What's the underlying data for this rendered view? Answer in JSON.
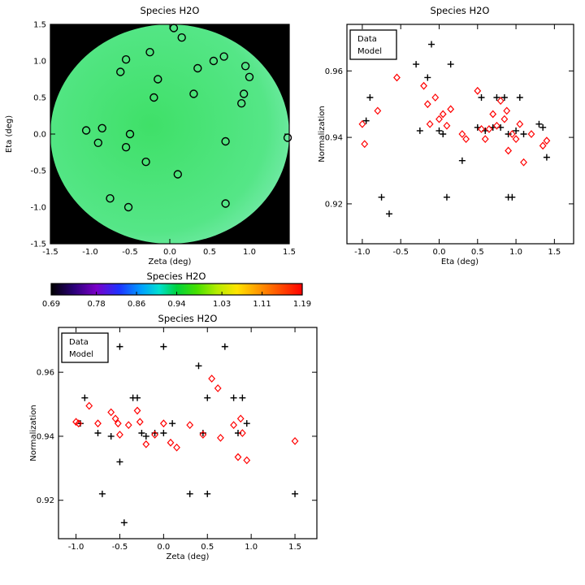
{
  "colors": {
    "page_background": "#ffffff",
    "axis": "#000000",
    "data_marker": "#000000",
    "model_marker": "#ff0000",
    "map_background": "#000000",
    "disk_center": "#3fe068",
    "disk_mid": "#55e687",
    "disk_edge": "#8feec6"
  },
  "chart_data": [
    {
      "id": "map",
      "type": "scatter",
      "title": "Species H2O",
      "xlabel": "Zeta (deg)",
      "ylabel": "Eta (deg)",
      "xlim": [
        -1.5,
        1.5
      ],
      "ylim": [
        -1.5,
        1.5
      ],
      "grid": false,
      "xticks": [
        {
          "v": -1.5,
          "label": "-1.5"
        },
        {
          "v": -1.0,
          "label": "-1.0"
        },
        {
          "v": -0.5,
          "label": "-0.5"
        },
        {
          "v": 0.0,
          "label": "0.0"
        },
        {
          "v": 0.5,
          "label": "0.5"
        },
        {
          "v": 1.0,
          "label": "1.0"
        },
        {
          "v": 1.5,
          "label": "1.5"
        }
      ],
      "yticks": [
        {
          "v": -1.5,
          "label": "-1.5"
        },
        {
          "v": -1.0,
          "label": "-1.0"
        },
        {
          "v": -0.5,
          "label": "-0.5"
        },
        {
          "v": 0.0,
          "label": "0.0"
        },
        {
          "v": 0.5,
          "label": "0.5"
        },
        {
          "v": 1.0,
          "label": "1.0"
        },
        {
          "v": 1.5,
          "label": "1.5"
        }
      ],
      "points": [
        [
          0.05,
          1.45
        ],
        [
          0.15,
          1.32
        ],
        [
          -0.25,
          1.12
        ],
        [
          -0.55,
          1.02
        ],
        [
          -0.62,
          0.85
        ],
        [
          -0.15,
          0.75
        ],
        [
          0.35,
          0.9
        ],
        [
          0.55,
          1.0
        ],
        [
          0.68,
          1.06
        ],
        [
          0.95,
          0.93
        ],
        [
          1.0,
          0.78
        ],
        [
          0.93,
          0.55
        ],
        [
          0.9,
          0.42
        ],
        [
          0.3,
          0.55
        ],
        [
          -0.2,
          0.5
        ],
        [
          -1.05,
          0.05
        ],
        [
          -0.85,
          0.08
        ],
        [
          -0.9,
          -0.12
        ],
        [
          -0.5,
          0.0
        ],
        [
          -0.55,
          -0.18
        ],
        [
          -0.3,
          -0.38
        ],
        [
          0.7,
          -0.1
        ],
        [
          1.48,
          -0.05
        ],
        [
          0.1,
          -0.55
        ],
        [
          -0.75,
          -0.88
        ],
        [
          -0.52,
          -1.0
        ],
        [
          0.7,
          -0.95
        ]
      ]
    },
    {
      "id": "eta_scatter",
      "type": "scatter",
      "title": "Species H2O",
      "xlabel": "Eta (deg)",
      "ylabel": "Normalization",
      "xlim": [
        -1.2,
        1.75
      ],
      "ylim": [
        0.908,
        0.974
      ],
      "grid": false,
      "xticks": [
        {
          "v": -1.0,
          "label": "-1.0"
        },
        {
          "v": -0.5,
          "label": "-0.5"
        },
        {
          "v": 0.0,
          "label": "0.0"
        },
        {
          "v": 0.5,
          "label": "0.5"
        },
        {
          "v": 1.0,
          "label": "1.0"
        },
        {
          "v": 1.5,
          "label": "1.5"
        }
      ],
      "yticks": [
        {
          "v": 0.92,
          "label": "0.92"
        },
        {
          "v": 0.94,
          "label": "0.94"
        },
        {
          "v": 0.96,
          "label": "0.96"
        }
      ],
      "legend": [
        {
          "label": "Data",
          "color": "#000000",
          "marker": "plus"
        },
        {
          "label": "Model",
          "color": "#ff0000",
          "marker": "diamond"
        }
      ],
      "series": [
        {
          "name": "Data",
          "marker": "plus",
          "color": "#000000",
          "points": [
            [
              -0.97,
              0.968
            ],
            [
              -0.95,
              0.945
            ],
            [
              -0.9,
              0.952
            ],
            [
              -0.75,
              0.922
            ],
            [
              -0.65,
              0.917
            ],
            [
              -0.3,
              0.962
            ],
            [
              -0.25,
              0.942
            ],
            [
              -0.15,
              0.958
            ],
            [
              -0.1,
              0.968
            ],
            [
              0.0,
              0.942
            ],
            [
              0.05,
              0.941
            ],
            [
              0.1,
              0.922
            ],
            [
              0.15,
              0.962
            ],
            [
              0.3,
              0.933
            ],
            [
              0.5,
              0.943
            ],
            [
              0.55,
              0.952
            ],
            [
              0.6,
              0.942
            ],
            [
              0.7,
              0.943
            ],
            [
              0.75,
              0.952
            ],
            [
              0.8,
              0.943
            ],
            [
              0.85,
              0.952
            ],
            [
              0.9,
              0.941
            ],
            [
              0.9,
              0.922
            ],
            [
              0.95,
              0.922
            ],
            [
              1.0,
              0.942
            ],
            [
              1.05,
              0.952
            ],
            [
              1.1,
              0.941
            ],
            [
              1.3,
              0.944
            ],
            [
              1.35,
              0.943
            ],
            [
              1.4,
              0.934
            ]
          ]
        },
        {
          "name": "Model",
          "marker": "diamond",
          "color": "#ff0000",
          "points": [
            [
              -1.0,
              0.944
            ],
            [
              -0.97,
              0.938
            ],
            [
              -0.8,
              0.948
            ],
            [
              -0.55,
              0.958
            ],
            [
              -0.2,
              0.9555
            ],
            [
              -0.15,
              0.95
            ],
            [
              -0.12,
              0.944
            ],
            [
              -0.05,
              0.952
            ],
            [
              0.0,
              0.9455
            ],
            [
              0.05,
              0.947
            ],
            [
              0.1,
              0.9435
            ],
            [
              0.15,
              0.9485
            ],
            [
              0.3,
              0.941
            ],
            [
              0.35,
              0.9395
            ],
            [
              0.5,
              0.954
            ],
            [
              0.55,
              0.9425
            ],
            [
              0.6,
              0.9395
            ],
            [
              0.65,
              0.9425
            ],
            [
              0.7,
              0.947
            ],
            [
              0.75,
              0.9435
            ],
            [
              0.8,
              0.951
            ],
            [
              0.85,
              0.9455
            ],
            [
              0.88,
              0.948
            ],
            [
              0.9,
              0.936
            ],
            [
              0.95,
              0.941
            ],
            [
              1.0,
              0.9395
            ],
            [
              1.05,
              0.944
            ],
            [
              1.1,
              0.9325
            ],
            [
              1.2,
              0.941
            ],
            [
              1.35,
              0.9375
            ],
            [
              1.4,
              0.939
            ]
          ]
        }
      ]
    },
    {
      "id": "colorbar",
      "type": "colorbar",
      "title": "Species H2O",
      "range": [
        0.69,
        1.19
      ],
      "tick_values": [
        0.69,
        0.78,
        0.86,
        0.94,
        1.03,
        1.11,
        1.19
      ],
      "tick_labels": [
        "0.69",
        "0.78",
        "0.86",
        "0.94",
        "1.03",
        "1.11",
        "1.19"
      ],
      "gradient": [
        {
          "at": 0.0,
          "color": "#000000"
        },
        {
          "at": 0.09,
          "color": "#2a0078"
        },
        {
          "at": 0.18,
          "color": "#7a00c8"
        },
        {
          "at": 0.27,
          "color": "#1e32ff"
        },
        {
          "at": 0.36,
          "color": "#00a0ff"
        },
        {
          "at": 0.43,
          "color": "#00e0d0"
        },
        {
          "at": 0.5,
          "color": "#00d23c"
        },
        {
          "at": 0.58,
          "color": "#46e000"
        },
        {
          "at": 0.66,
          "color": "#b4ec00"
        },
        {
          "at": 0.74,
          "color": "#ffe400"
        },
        {
          "at": 0.84,
          "color": "#ff8c00"
        },
        {
          "at": 1.0,
          "color": "#ff0000"
        }
      ]
    },
    {
      "id": "zeta_scatter",
      "type": "scatter",
      "title": "Species H2O",
      "xlabel": "Zeta (deg)",
      "ylabel": "Normalization",
      "xlim": [
        -1.2,
        1.75
      ],
      "ylim": [
        0.908,
        0.974
      ],
      "grid": false,
      "xticks": [
        {
          "v": -1.0,
          "label": "-1.0"
        },
        {
          "v": -0.5,
          "label": "-0.5"
        },
        {
          "v": 0.0,
          "label": "0.0"
        },
        {
          "v": 0.5,
          "label": "0.5"
        },
        {
          "v": 1.0,
          "label": "1.0"
        },
        {
          "v": 1.5,
          "label": "1.5"
        }
      ],
      "yticks": [
        {
          "v": 0.92,
          "label": "0.92"
        },
        {
          "v": 0.94,
          "label": "0.94"
        },
        {
          "v": 0.96,
          "label": "0.96"
        }
      ],
      "legend": [
        {
          "label": "Data",
          "color": "#000000",
          "marker": "plus"
        },
        {
          "label": "Model",
          "color": "#ff0000",
          "marker": "diamond"
        }
      ],
      "series": [
        {
          "name": "Data",
          "marker": "plus",
          "color": "#000000",
          "points": [
            [
              -0.95,
              0.944
            ],
            [
              -0.9,
              0.952
            ],
            [
              -0.75,
              0.968
            ],
            [
              -0.75,
              0.941
            ],
            [
              -0.7,
              0.922
            ],
            [
              -0.6,
              0.94
            ],
            [
              -0.5,
              0.968
            ],
            [
              -0.5,
              0.932
            ],
            [
              -0.45,
              0.913
            ],
            [
              -0.35,
              0.952
            ],
            [
              -0.3,
              0.952
            ],
            [
              -0.25,
              0.941
            ],
            [
              -0.2,
              0.94
            ],
            [
              -0.1,
              0.941
            ],
            [
              0.0,
              0.968
            ],
            [
              0.0,
              0.941
            ],
            [
              0.1,
              0.944
            ],
            [
              0.3,
              0.922
            ],
            [
              0.4,
              0.962
            ],
            [
              0.45,
              0.941
            ],
            [
              0.5,
              0.952
            ],
            [
              0.5,
              0.922
            ],
            [
              0.7,
              0.968
            ],
            [
              0.8,
              0.952
            ],
            [
              0.85,
              0.941
            ],
            [
              0.9,
              0.952
            ],
            [
              0.95,
              0.944
            ],
            [
              1.5,
              0.922
            ]
          ]
        },
        {
          "name": "Model",
          "marker": "diamond",
          "color": "#ff0000",
          "points": [
            [
              -1.0,
              0.9445
            ],
            [
              -0.97,
              0.944
            ],
            [
              -0.85,
              0.9495
            ],
            [
              -0.75,
              0.944
            ],
            [
              -0.6,
              0.9475
            ],
            [
              -0.55,
              0.9455
            ],
            [
              -0.52,
              0.944
            ],
            [
              -0.5,
              0.9405
            ],
            [
              -0.4,
              0.9435
            ],
            [
              -0.3,
              0.948
            ],
            [
              -0.27,
              0.9445
            ],
            [
              -0.2,
              0.9375
            ],
            [
              -0.1,
              0.9405
            ],
            [
              0.0,
              0.944
            ],
            [
              0.08,
              0.938
            ],
            [
              0.15,
              0.9365
            ],
            [
              0.3,
              0.9435
            ],
            [
              0.45,
              0.9405
            ],
            [
              0.55,
              0.958
            ],
            [
              0.62,
              0.955
            ],
            [
              0.65,
              0.9395
            ],
            [
              0.8,
              0.9435
            ],
            [
              0.85,
              0.9335
            ],
            [
              0.88,
              0.9455
            ],
            [
              0.9,
              0.941
            ],
            [
              0.95,
              0.9325
            ],
            [
              1.5,
              0.9385
            ]
          ]
        }
      ]
    }
  ]
}
